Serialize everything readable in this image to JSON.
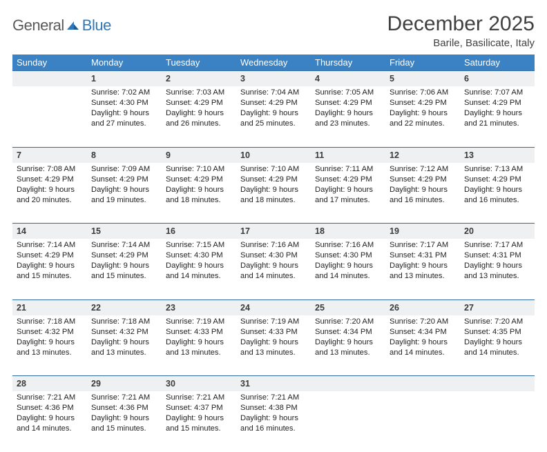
{
  "logo": {
    "general": "General",
    "blue": "Blue"
  },
  "title": "December 2025",
  "location": "Barile, Basilicate, Italy",
  "colors": {
    "header_bg": "#3a82c4",
    "header_text": "#ffffff",
    "row_top_border": "#2f6aa3",
    "daynum_bg": "#eef0f2",
    "body_text": "#222222",
    "logo_gray": "#5a5a5a",
    "logo_blue": "#2f78b8"
  },
  "typography": {
    "title_fontsize": 30,
    "location_fontsize": 15,
    "weekday_fontsize": 13,
    "daynum_fontsize": 12.5,
    "cell_fontsize": 11.2
  },
  "weekdays": [
    "Sunday",
    "Monday",
    "Tuesday",
    "Wednesday",
    "Thursday",
    "Friday",
    "Saturday"
  ],
  "weeks": [
    [
      null,
      {
        "n": "1",
        "sr": "7:02 AM",
        "ss": "4:30 PM",
        "dl": "9 hours and 27 minutes."
      },
      {
        "n": "2",
        "sr": "7:03 AM",
        "ss": "4:29 PM",
        "dl": "9 hours and 26 minutes."
      },
      {
        "n": "3",
        "sr": "7:04 AM",
        "ss": "4:29 PM",
        "dl": "9 hours and 25 minutes."
      },
      {
        "n": "4",
        "sr": "7:05 AM",
        "ss": "4:29 PM",
        "dl": "9 hours and 23 minutes."
      },
      {
        "n": "5",
        "sr": "7:06 AM",
        "ss": "4:29 PM",
        "dl": "9 hours and 22 minutes."
      },
      {
        "n": "6",
        "sr": "7:07 AM",
        "ss": "4:29 PM",
        "dl": "9 hours and 21 minutes."
      }
    ],
    [
      {
        "n": "7",
        "sr": "7:08 AM",
        "ss": "4:29 PM",
        "dl": "9 hours and 20 minutes."
      },
      {
        "n": "8",
        "sr": "7:09 AM",
        "ss": "4:29 PM",
        "dl": "9 hours and 19 minutes."
      },
      {
        "n": "9",
        "sr": "7:10 AM",
        "ss": "4:29 PM",
        "dl": "9 hours and 18 minutes."
      },
      {
        "n": "10",
        "sr": "7:10 AM",
        "ss": "4:29 PM",
        "dl": "9 hours and 18 minutes."
      },
      {
        "n": "11",
        "sr": "7:11 AM",
        "ss": "4:29 PM",
        "dl": "9 hours and 17 minutes."
      },
      {
        "n": "12",
        "sr": "7:12 AM",
        "ss": "4:29 PM",
        "dl": "9 hours and 16 minutes."
      },
      {
        "n": "13",
        "sr": "7:13 AM",
        "ss": "4:29 PM",
        "dl": "9 hours and 16 minutes."
      }
    ],
    [
      {
        "n": "14",
        "sr": "7:14 AM",
        "ss": "4:29 PM",
        "dl": "9 hours and 15 minutes."
      },
      {
        "n": "15",
        "sr": "7:14 AM",
        "ss": "4:29 PM",
        "dl": "9 hours and 15 minutes."
      },
      {
        "n": "16",
        "sr": "7:15 AM",
        "ss": "4:30 PM",
        "dl": "9 hours and 14 minutes."
      },
      {
        "n": "17",
        "sr": "7:16 AM",
        "ss": "4:30 PM",
        "dl": "9 hours and 14 minutes."
      },
      {
        "n": "18",
        "sr": "7:16 AM",
        "ss": "4:30 PM",
        "dl": "9 hours and 14 minutes."
      },
      {
        "n": "19",
        "sr": "7:17 AM",
        "ss": "4:31 PM",
        "dl": "9 hours and 13 minutes."
      },
      {
        "n": "20",
        "sr": "7:17 AM",
        "ss": "4:31 PM",
        "dl": "9 hours and 13 minutes."
      }
    ],
    [
      {
        "n": "21",
        "sr": "7:18 AM",
        "ss": "4:32 PM",
        "dl": "9 hours and 13 minutes."
      },
      {
        "n": "22",
        "sr": "7:18 AM",
        "ss": "4:32 PM",
        "dl": "9 hours and 13 minutes."
      },
      {
        "n": "23",
        "sr": "7:19 AM",
        "ss": "4:33 PM",
        "dl": "9 hours and 13 minutes."
      },
      {
        "n": "24",
        "sr": "7:19 AM",
        "ss": "4:33 PM",
        "dl": "9 hours and 13 minutes."
      },
      {
        "n": "25",
        "sr": "7:20 AM",
        "ss": "4:34 PM",
        "dl": "9 hours and 13 minutes."
      },
      {
        "n": "26",
        "sr": "7:20 AM",
        "ss": "4:34 PM",
        "dl": "9 hours and 14 minutes."
      },
      {
        "n": "27",
        "sr": "7:20 AM",
        "ss": "4:35 PM",
        "dl": "9 hours and 14 minutes."
      }
    ],
    [
      {
        "n": "28",
        "sr": "7:21 AM",
        "ss": "4:36 PM",
        "dl": "9 hours and 14 minutes."
      },
      {
        "n": "29",
        "sr": "7:21 AM",
        "ss": "4:36 PM",
        "dl": "9 hours and 15 minutes."
      },
      {
        "n": "30",
        "sr": "7:21 AM",
        "ss": "4:37 PM",
        "dl": "9 hours and 15 minutes."
      },
      {
        "n": "31",
        "sr": "7:21 AM",
        "ss": "4:38 PM",
        "dl": "9 hours and 16 minutes."
      },
      null,
      null,
      null
    ]
  ],
  "labels": {
    "sunrise": "Sunrise:",
    "sunset": "Sunset:",
    "daylight": "Daylight:"
  }
}
